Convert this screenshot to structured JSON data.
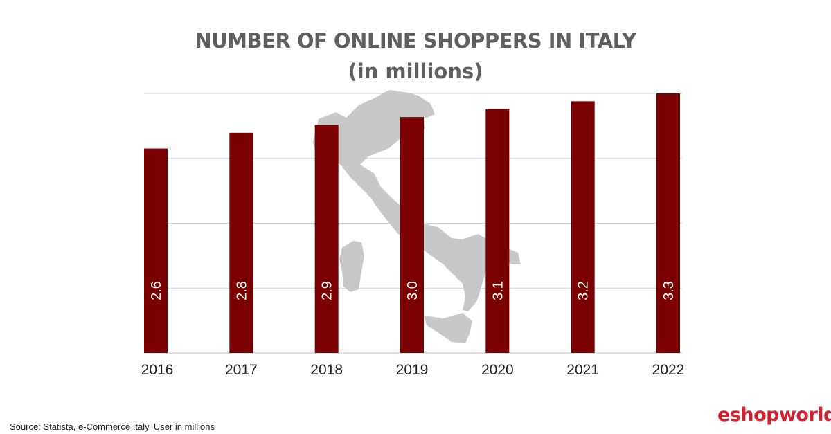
{
  "chart_data": {
    "type": "bar",
    "title": "NUMBER OF ONLINE SHOPPERS IN ITALY",
    "subtitle": "(in millions)",
    "categories": [
      "2016",
      "2017",
      "2018",
      "2019",
      "2020",
      "2021",
      "2022"
    ],
    "values": [
      2.6,
      2.8,
      2.9,
      3.0,
      3.1,
      3.2,
      3.3
    ],
    "data_labels": [
      "2.6",
      "2.8",
      "2.9",
      "3.0",
      "3.1",
      "3.2",
      "3.3"
    ],
    "xlabel": "",
    "ylabel": "",
    "ylim": [
      0,
      3.3
    ],
    "grid": true,
    "bar_color": "#7b0000",
    "grid_color": "#d0d0d0",
    "background_graphic": "italy-map-silhouette"
  },
  "footer": {
    "source": "Source: Statista, e-Commerce Italy, User in millions",
    "brand": "eshopworld"
  }
}
